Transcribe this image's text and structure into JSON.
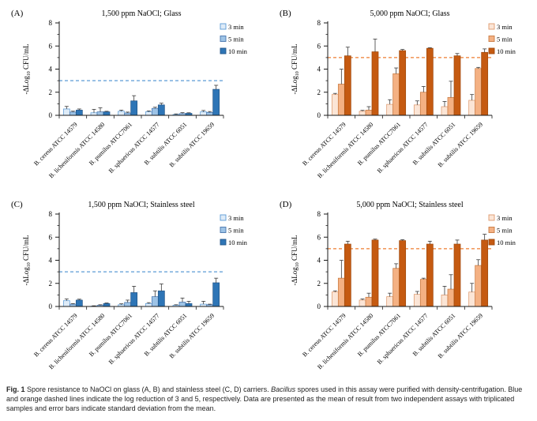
{
  "caption": {
    "parts": [
      {
        "text": "Fig. 1",
        "style": "bold"
      },
      {
        "text": " Spore resistance to NaOCl on glass (A, B) and stainless steel (C, D) carriers. ",
        "style": "normal"
      },
      {
        "text": "Bacillus",
        "style": "italic"
      },
      {
        "text": " spores used in this assay were purified with density-centrifugation. Blue and orange dashed lines indicate the log reduction of 3 and 5, respectively. Data are presented as the mean of result from two independent assays with triplicated samples and error bars indicate standard deviation from the mean.",
        "style": "normal"
      }
    ]
  },
  "axes": {
    "ylabel": {
      "pre": "-ΔLog",
      "sub": "10",
      "post": " CFU/mL"
    },
    "ylim": [
      0,
      8
    ],
    "yticks_major": [
      0,
      2,
      4,
      6,
      8
    ],
    "yticks_minor": [
      1,
      3,
      5,
      7
    ]
  },
  "categories": [
    "B. cereus ATCC 14579",
    "B. licheniformis ATCC 14580",
    "B. pumilus ATCC7061",
    "B. sphaericus ATCC 14577",
    "B. subtilis ATCC 6051",
    "B. subtilis ATCC 19659"
  ],
  "colors": {
    "blue": {
      "fills": [
        "#DEEBF7",
        "#9DC3E6",
        "#2E75B6"
      ],
      "strokes": [
        "#5B9BD5",
        "#4976AD",
        "#24578A"
      ],
      "dash": "#5B9BD5"
    },
    "orange": {
      "fills": [
        "#FBE5D6",
        "#F4B183",
        "#C55A11"
      ],
      "strokes": [
        "#DE9A6E",
        "#C97B42",
        "#A04A0E"
      ],
      "dash": "#ED7D31"
    }
  },
  "chart_data": [
    {
      "type": "bar",
      "panel": "(A)",
      "title": "1,500 ppm NaOCl; Glass",
      "scheme": "blue",
      "refline": 3,
      "legend_position": "right",
      "series": [
        {
          "name": "3 min",
          "values": [
            0.55,
            0.22,
            0.35,
            0.3,
            0.07,
            0.3
          ],
          "errors": [
            0.22,
            0.3,
            0.1,
            0.08,
            0.05,
            0.12
          ]
        },
        {
          "name": "5 min",
          "values": [
            0.28,
            0.3,
            0.2,
            0.6,
            0.15,
            0.25
          ],
          "errors": [
            0.08,
            0.35,
            0.08,
            0.1,
            0.08,
            0.08
          ]
        },
        {
          "name": "10 min",
          "values": [
            0.45,
            0.3,
            1.25,
            0.9,
            0.17,
            2.25
          ],
          "errors": [
            0.1,
            0.05,
            0.45,
            0.15,
            0.05,
            0.35
          ]
        }
      ]
    },
    {
      "type": "bar",
      "panel": "(B)",
      "title": "5,000 ppm NaOCl; Glass",
      "scheme": "orange",
      "refline": 5,
      "legend_position": "right",
      "series": [
        {
          "name": "3 min",
          "values": [
            1.8,
            0.35,
            0.95,
            0.9,
            0.75,
            1.3
          ],
          "errors": [
            0.1,
            0.08,
            0.4,
            0.35,
            0.45,
            0.5
          ]
        },
        {
          "name": "5 min",
          "values": [
            2.7,
            0.45,
            3.6,
            2.0,
            1.55,
            4.05
          ],
          "errors": [
            1.3,
            0.3,
            0.5,
            0.5,
            1.4,
            0.1
          ]
        },
        {
          "name": "10 min",
          "values": [
            5.15,
            5.5,
            5.6,
            5.8,
            5.15,
            5.45
          ],
          "errors": [
            0.75,
            1.1,
            0.1,
            0.05,
            0.2,
            0.3
          ]
        }
      ]
    },
    {
      "type": "bar",
      "panel": "(C)",
      "title": "1,500 ppm NaOCl; Stainless steel",
      "scheme": "blue",
      "refline": 3,
      "legend_position": "right",
      "series": [
        {
          "name": "3 min",
          "values": [
            0.5,
            0.03,
            0.15,
            0.25,
            0.1,
            0.2
          ],
          "errors": [
            0.15,
            0.03,
            0.08,
            0.08,
            0.05,
            0.25
          ]
        },
        {
          "name": "5 min",
          "values": [
            0.2,
            0.1,
            0.35,
            0.85,
            0.38,
            0.15
          ],
          "errors": [
            0.05,
            0.05,
            0.2,
            0.5,
            0.35,
            0.05
          ]
        },
        {
          "name": "10 min",
          "values": [
            0.55,
            0.25,
            1.2,
            1.35,
            0.25,
            2.05
          ],
          "errors": [
            0.08,
            0.05,
            0.55,
            0.6,
            0.2,
            0.4
          ]
        }
      ]
    },
    {
      "type": "bar",
      "panel": "(D)",
      "title": "5,000 ppm NaOCl; Stainless steel",
      "scheme": "orange",
      "refline": 5,
      "legend_position": "right",
      "series": [
        {
          "name": "3 min",
          "values": [
            1.25,
            0.55,
            0.85,
            1.05,
            1.0,
            1.25
          ],
          "errors": [
            0.1,
            0.1,
            0.3,
            0.25,
            0.75,
            0.75
          ]
        },
        {
          "name": "5 min",
          "values": [
            2.45,
            0.8,
            3.3,
            2.35,
            1.5,
            3.55
          ],
          "errors": [
            1.55,
            0.35,
            0.4,
            0.1,
            1.25,
            0.5
          ]
        },
        {
          "name": "10 min",
          "values": [
            5.4,
            5.75,
            5.7,
            5.4,
            5.4,
            5.75
          ],
          "errors": [
            0.25,
            0.08,
            0.08,
            0.25,
            0.35,
            0.5
          ]
        }
      ]
    }
  ]
}
